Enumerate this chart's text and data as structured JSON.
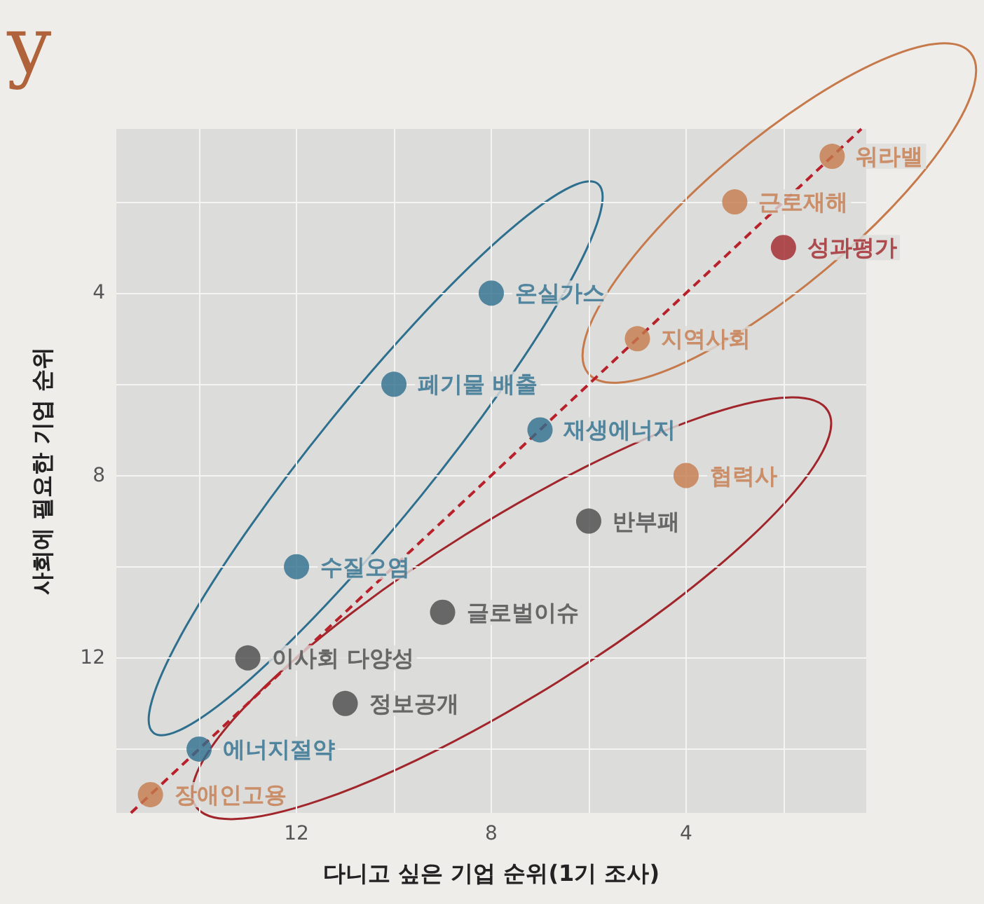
{
  "chart_data": {
    "type": "scatter",
    "title": "y",
    "xlabel": "다니고 싶은 기업 순위(1기 조사)",
    "ylabel": "사회에 필요한 기업 순위",
    "xlim": [
      15.7,
      0.3
    ],
    "ylim": [
      15.4,
      0.4
    ],
    "xticks": [
      {
        "value": 14,
        "label": null
      },
      12,
      {
        "value": 10,
        "label": null
      },
      8,
      {
        "value": 6,
        "label": null
      },
      4,
      {
        "value": 2,
        "label": null
      }
    ],
    "yticks": [
      {
        "value": 2,
        "label": null
      },
      4,
      {
        "value": 6,
        "label": null
      },
      8,
      {
        "value": 10,
        "label": null
      },
      12,
      {
        "value": 14,
        "label": null
      }
    ],
    "grid": true,
    "marker": "circle",
    "series": [
      {
        "color": "#2e6f8e",
        "x": [
          8,
          10,
          7,
          12,
          14
        ],
        "values": [
          4,
          6,
          7,
          10,
          14
        ]
      },
      {
        "color": "#c67a4c",
        "x": [
          1,
          3,
          5,
          4,
          15
        ],
        "values": [
          1,
          2,
          5,
          8,
          15
        ]
      },
      {
        "color": "#a1262b",
        "x": [
          2
        ],
        "values": [
          3
        ]
      },
      {
        "color": "#4a4a4a",
        "x": [
          6,
          9,
          13,
          11
        ],
        "values": [
          9,
          11,
          12,
          13
        ]
      },
      {
        "type": "line",
        "color": "#b8202a",
        "line_style": "dashed",
        "marker": "none",
        "x": [
          15.4,
          0.4
        ],
        "values": [
          15.4,
          0.4
        ]
      }
    ],
    "annotations": [
      {
        "text": "워라밸",
        "x": 1,
        "y": 1
      },
      {
        "text": "근로재해",
        "x": 3,
        "y": 2
      },
      {
        "text": "성과평가",
        "x": 2,
        "y": 3
      },
      {
        "text": "온실가스",
        "x": 8,
        "y": 4
      },
      {
        "text": "지역사회",
        "x": 5,
        "y": 5
      },
      {
        "text": "폐기물 배출",
        "x": 10,
        "y": 6
      },
      {
        "text": "재생에너지",
        "x": 7,
        "y": 7
      },
      {
        "text": "협력사",
        "x": 4,
        "y": 8
      },
      {
        "text": "반부패",
        "x": 6,
        "y": 9
      },
      {
        "text": "수질오염",
        "x": 12,
        "y": 10
      },
      {
        "text": "글로벌이슈",
        "x": 9,
        "y": 11
      },
      {
        "text": "이사회 다양성",
        "x": 13,
        "y": 12
      },
      {
        "text": "정보공개",
        "x": 11,
        "y": 13
      },
      {
        "text": "에너지절약",
        "x": 14,
        "y": 14
      },
      {
        "text": "장애인고용",
        "x": 15,
        "y": 15
      }
    ]
  }
}
